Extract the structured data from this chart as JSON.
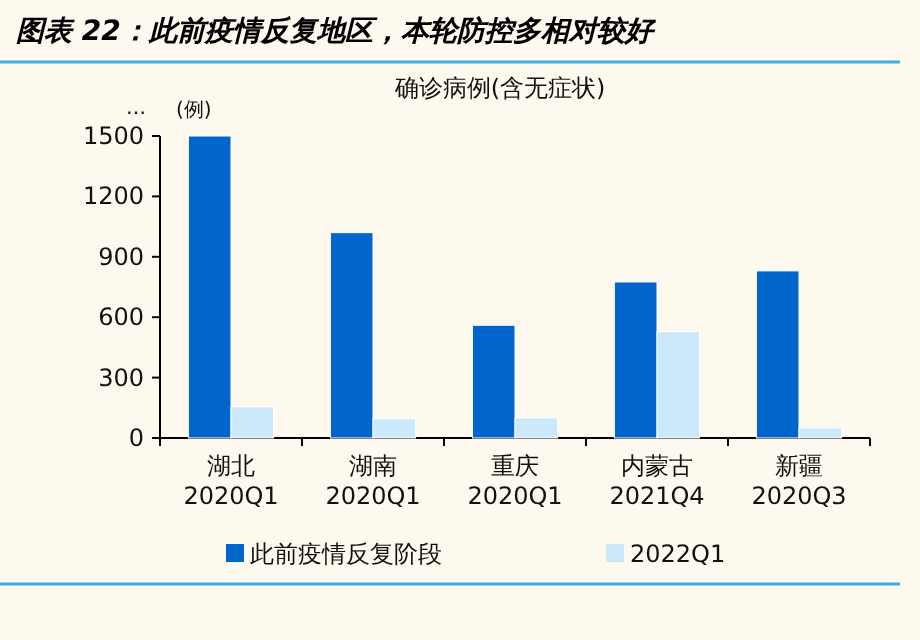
{
  "chart_data": {
    "type": "bar",
    "title": "图表 22：此前疫情反复地区，本轮防控多相对较好",
    "subtitle": "确诊病例(含无症状)",
    "ylabel": "(例)",
    "annotations": [
      "…"
    ],
    "categories": [
      "湖北\n2020Q1",
      "湖南\n2020Q1",
      "重庆\n2020Q1",
      "内蒙古\n2021Q4",
      "新疆\n2020Q3"
    ],
    "series": [
      {
        "name": "此前疫情反复阶段",
        "color": "#0066cc",
        "values": [
          1500,
          1020,
          560,
          775,
          830
        ]
      },
      {
        "name": "2022Q1",
        "color": "#cce9fb",
        "values": [
          155,
          96,
          100,
          528,
          50
        ]
      }
    ],
    "ylim": [
      0,
      1500
    ],
    "yticks": [
      0,
      300,
      600,
      900,
      1200,
      1500
    ],
    "grid": false,
    "legend": "bottom"
  }
}
